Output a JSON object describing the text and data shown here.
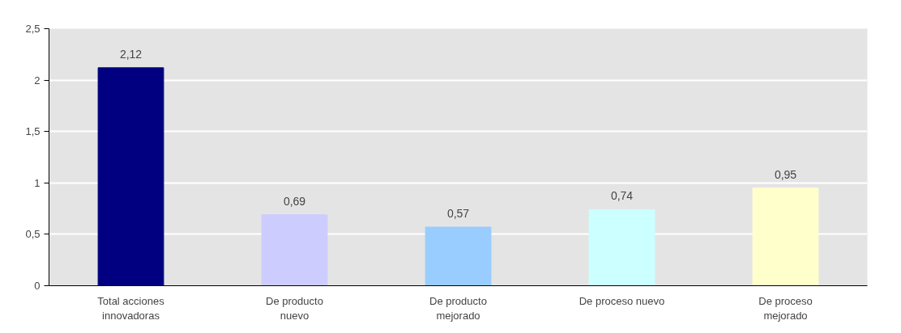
{
  "chart_data": {
    "type": "bar",
    "categories": [
      "Total acciones innovadoras",
      "De producto nuevo",
      "De producto mejorado",
      "De proceso nuevo",
      "De proceso mejorado"
    ],
    "values": [
      2.12,
      0.69,
      0.57,
      0.74,
      0.95
    ],
    "colors": [
      "#000080",
      "#ccccff",
      "#99ccff",
      "#ccffff",
      "#ffffcc"
    ],
    "value_labels": [
      "2,12",
      "0,69",
      "0,57",
      "0,74",
      "0,95"
    ],
    "ylim": [
      0,
      2.5
    ],
    "yticks": [
      0,
      {
        "value": 0.5,
        "label": "0,5"
      },
      1,
      {
        "value": 1.5,
        "label": "1,5"
      },
      2,
      {
        "value": 2.5,
        "label": "2,5"
      }
    ],
    "grid": "y"
  }
}
